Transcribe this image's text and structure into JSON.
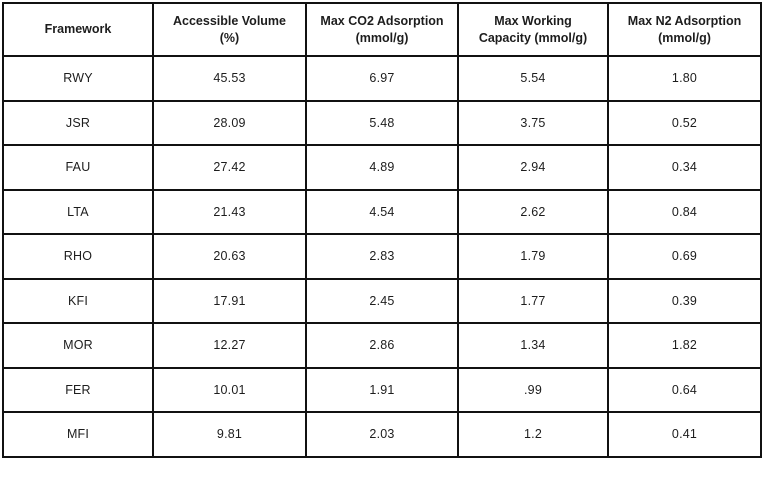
{
  "chart_data": {
    "type": "table",
    "columns": [
      "Framework",
      "Accessible Volume (%)",
      "Max CO2 Adsorption (mmol/g)",
      "Max Working Capacity (mmol/g)",
      "Max N2 Adsorption (mmol/g)"
    ],
    "rows": [
      [
        "RWY",
        "45.53",
        "6.97",
        "5.54",
        "1.80"
      ],
      [
        "JSR",
        "28.09",
        "5.48",
        "3.75",
        "0.52"
      ],
      [
        "FAU",
        "27.42",
        "4.89",
        "2.94",
        "0.34"
      ],
      [
        "LTA",
        "21.43",
        "4.54",
        "2.62",
        "0.84"
      ],
      [
        "RHO",
        "20.63",
        "2.83",
        "1.79",
        "0.69"
      ],
      [
        "KFI",
        "17.91",
        "2.45",
        "1.77",
        "0.39"
      ],
      [
        "MOR",
        "12.27",
        "2.86",
        "1.34",
        "1.82"
      ],
      [
        "FER",
        "10.01",
        "1.91",
        ".99",
        "0.64"
      ],
      [
        "MFI",
        "9.81",
        "2.03",
        "1.2",
        "0.41"
      ]
    ]
  }
}
